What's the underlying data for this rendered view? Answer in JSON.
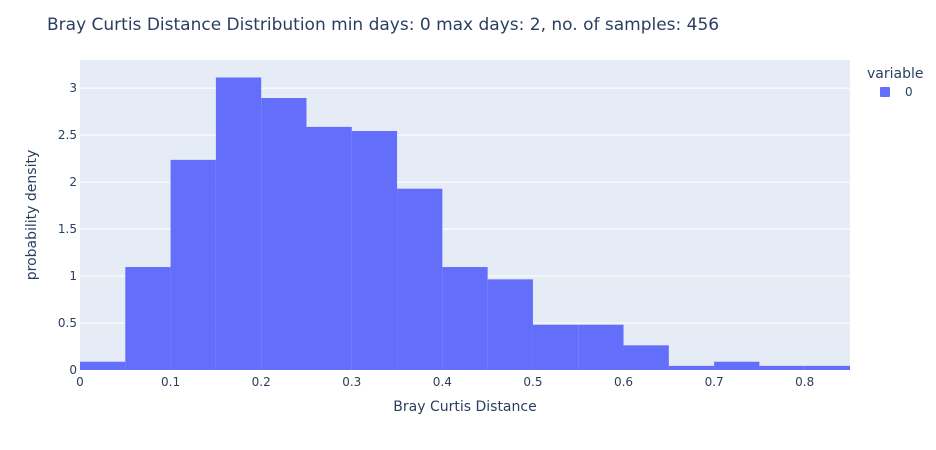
{
  "chart_data": {
    "type": "bar",
    "title": "Bray Curtis Distance Distribution min days: 0 max days: 2, no. of samples: 456",
    "xlabel": "Bray Curtis Distance",
    "ylabel": "probability density",
    "xlim": [
      0,
      0.85
    ],
    "ylim": [
      0,
      3.3
    ],
    "bin_width": 0.05,
    "x_ticks": [
      0,
      0.1,
      0.2,
      0.3,
      0.4,
      0.5,
      0.6,
      0.7,
      0.8
    ],
    "x_tick_labels": [
      "0",
      "0.1",
      "0.2",
      "0.3",
      "0.4",
      "0.5",
      "0.6",
      "0.7",
      "0.8"
    ],
    "y_ticks": [
      0,
      0.5,
      1,
      1.5,
      2,
      2.5,
      3
    ],
    "y_tick_labels": [
      "0",
      "0.5",
      "1",
      "1.5",
      "2",
      "2.5",
      "3"
    ],
    "bin_starts": [
      0,
      0.05,
      0.1,
      0.15,
      0.2,
      0.25,
      0.3,
      0.35,
      0.4,
      0.45,
      0.5,
      0.55,
      0.6,
      0.65,
      0.7,
      0.75,
      0.8
    ],
    "series": [
      {
        "name": "0",
        "color": "#636efa",
        "values": [
          0.088,
          1.096,
          2.237,
          3.114,
          2.895,
          2.588,
          2.544,
          1.93,
          1.096,
          0.965,
          0.482,
          0.482,
          0.263,
          0.044,
          0.088,
          0.044,
          0.044
        ]
      }
    ],
    "legend": {
      "title": "variable",
      "position": "top-right"
    },
    "grid": true,
    "plot_bgcolor": "#e5ecf6",
    "text_color": "#2a3f5f"
  }
}
